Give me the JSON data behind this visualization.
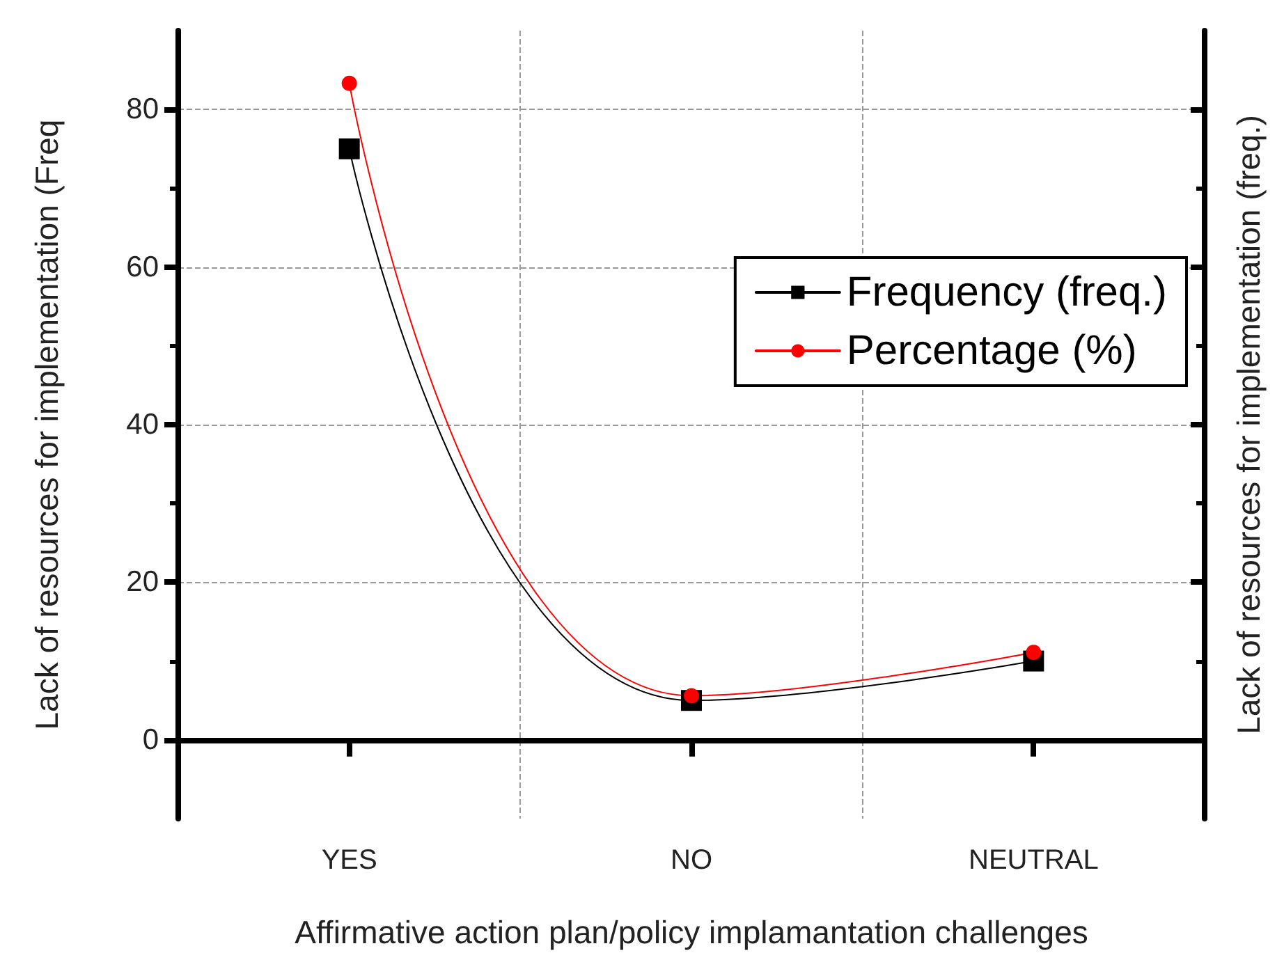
{
  "chart_data": {
    "type": "line",
    "xlabel": "Affirmative action plan/policy implamantation challenges",
    "ylabel": "Lack of resources for implementation (Freq",
    "y2label": "Lack of resources for implementation (freq.)",
    "categories": [
      "YES",
      "NO",
      "NEUTRAL"
    ],
    "series": [
      {
        "name": "Frequency (freq.)",
        "color": "#000000",
        "marker": "square",
        "values": [
          75,
          5,
          10
        ]
      },
      {
        "name": "Percentage (%)",
        "color": "#ff0000",
        "marker": "circle",
        "values": [
          83.3,
          5.6,
          11.1
        ]
      }
    ],
    "ylim": [
      -10,
      90
    ],
    "yticks": [
      0,
      20,
      40,
      60,
      80
    ],
    "grid": true,
    "legend": "right"
  }
}
